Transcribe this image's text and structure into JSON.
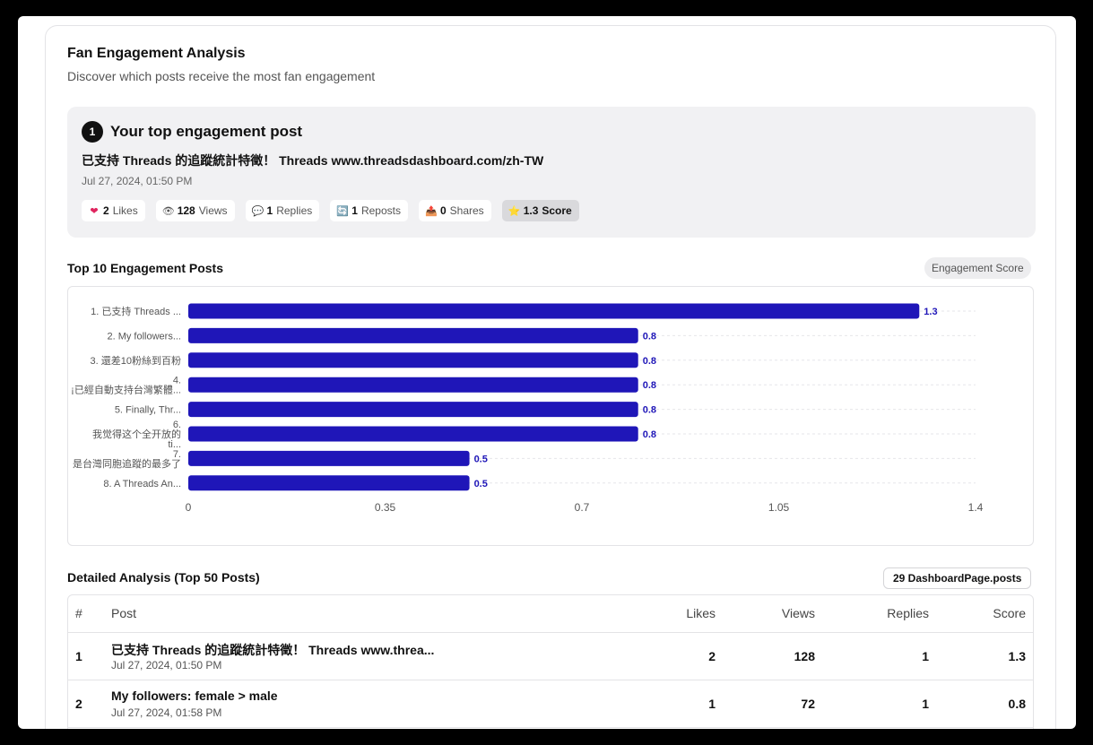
{
  "card": {
    "title": "Fan Engagement Analysis",
    "subtitle": "Discover which posts receive the most fan engagement"
  },
  "top_post": {
    "rank": "1",
    "heading": "Your top engagement post",
    "text": "已支持 Threads 的追蹤統計特徵！ Threads www.threadsdashboard.com/zh-TW",
    "date": "Jul 27, 2024, 01:50 PM",
    "stats": [
      {
        "icon": "heart-icon",
        "glyph": "❤",
        "color": "#e0245e",
        "value": "2",
        "label": "Likes"
      },
      {
        "icon": "eye-icon",
        "glyph": "👁",
        "color": "#333",
        "value": "128",
        "label": "Views"
      },
      {
        "icon": "speech-bubble-icon",
        "glyph": "💬",
        "color": "#888",
        "value": "1",
        "label": "Replies"
      },
      {
        "icon": "repost-icon",
        "glyph": "🔄",
        "color": "#2a6fdb",
        "value": "1",
        "label": "Reposts"
      },
      {
        "icon": "share-icon",
        "glyph": "📤",
        "color": "#2a6fdb",
        "value": "0",
        "label": "Shares"
      },
      {
        "icon": "star-icon",
        "glyph": "⭐",
        "color": "#e6b800",
        "value": "1.3",
        "label": "Score"
      }
    ]
  },
  "chart_section": {
    "title": "Top 10 Engagement Posts",
    "metric_pill": "Engagement Score"
  },
  "chart_data": {
    "type": "bar",
    "orientation": "horizontal",
    "categories": [
      [
        "1. 已支持 Threads ..."
      ],
      [
        "2. My followers..."
      ],
      [
        "3. 還差10粉絲到百粉"
      ],
      [
        "4.",
        "¡已經自動支持台灣繁體..."
      ],
      [
        "5. Finally, Thr..."
      ],
      [
        "6.",
        "我觉得这个全开放的",
        "ti..."
      ],
      [
        "7.",
        "是台灣同胞追蹤的最多了"
      ],
      [
        "8. A Threads An..."
      ]
    ],
    "values": [
      1.3,
      0.8,
      0.8,
      0.8,
      0.8,
      0.8,
      0.5,
      0.5
    ],
    "value_labels": [
      "1.3",
      "0.8",
      "0.8",
      "0.8",
      "0.8",
      "0.8",
      "0.5",
      "0.5"
    ],
    "xlim": [
      0,
      1.4
    ],
    "xticks": [
      "0",
      "0.35",
      "0.7",
      "1.05",
      "1.4"
    ],
    "xtick_values": [
      0,
      0.35,
      0.7,
      1.05,
      1.4
    ],
    "bar_color": "#1f16b8",
    "label_color": "#1f16b8",
    "title": "",
    "xlabel": "",
    "ylabel": "",
    "grid": "horizontal-dashed"
  },
  "table_section": {
    "title": "Detailed Analysis (Top 50 Posts)",
    "count_pill": "29 DashboardPage.posts",
    "columns": {
      "rank": "#",
      "post": "Post",
      "likes": "Likes",
      "views": "Views",
      "replies": "Replies",
      "score": "Score"
    },
    "rows": [
      {
        "rank": "1",
        "post": "已支持 Threads 的追蹤統計特徵！ Threads www.threa...",
        "date": "Jul 27, 2024, 01:50 PM",
        "likes": "2",
        "views": "128",
        "replies": "1",
        "score": "1.3"
      },
      {
        "rank": "2",
        "post": "My followers: female > male",
        "date": "Jul 27, 2024, 01:58 PM",
        "likes": "1",
        "views": "72",
        "replies": "1",
        "score": "0.8"
      }
    ]
  }
}
